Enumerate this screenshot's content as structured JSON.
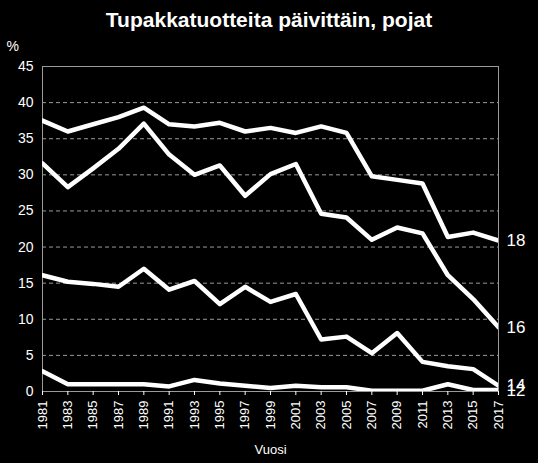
{
  "chart_data": {
    "type": "line",
    "title": "Tupakkatuotteita päivittäin, pojat",
    "x_label": "Vuosi",
    "y_label": "%",
    "x": [
      1981,
      1983,
      1985,
      1987,
      1989,
      1991,
      1993,
      1995,
      1997,
      1999,
      2001,
      2003,
      2005,
      2007,
      2009,
      2011,
      2013,
      2015,
      2017
    ],
    "series": [
      {
        "name": "18",
        "color": "#ffffff",
        "values": [
          37.5,
          36,
          37,
          38,
          39.3,
          37,
          36.7,
          37.2,
          36,
          36.5,
          35.8,
          36.7,
          35.8,
          29.8,
          29.3,
          28.8,
          21.4,
          22,
          20.9
        ]
      },
      {
        "name": "16",
        "color": "#ffffff",
        "values": [
          31.6,
          28.3,
          30.9,
          33.6,
          37.1,
          32.8,
          30,
          31.3,
          27.1,
          30.1,
          31.5,
          24.6,
          24.1,
          21,
          22.7,
          21.9,
          16.1,
          12.8,
          8.9
        ]
      },
      {
        "name": "14",
        "color": "#ffffff",
        "values": [
          16.1,
          15.2,
          14.9,
          14.5,
          17,
          14.1,
          15.3,
          12.1,
          14.5,
          12.4,
          13.5,
          7.2,
          7.6,
          5.3,
          8.1,
          4.1,
          3.5,
          3.1,
          0.8
        ]
      },
      {
        "name": "12",
        "color": "#ffffff",
        "values": [
          2.8,
          1,
          1,
          1,
          1,
          0.7,
          1.6,
          1.1,
          0.8,
          0.5,
          0.8,
          0.6,
          0.6,
          0.1,
          0.1,
          0.1,
          1,
          0.2,
          0.2
        ]
      }
    ],
    "xlim": [
      1981,
      2017
    ],
    "xticks": [
      1981,
      1983,
      1985,
      1987,
      1989,
      1991,
      1993,
      1995,
      1997,
      1999,
      2001,
      2003,
      2005,
      2007,
      2009,
      2011,
      2013,
      2015,
      2017
    ],
    "ylim": [
      0,
      45
    ],
    "yticks": [
      0,
      5,
      10,
      15,
      20,
      25,
      30,
      35,
      40,
      45
    ],
    "grid": true
  }
}
